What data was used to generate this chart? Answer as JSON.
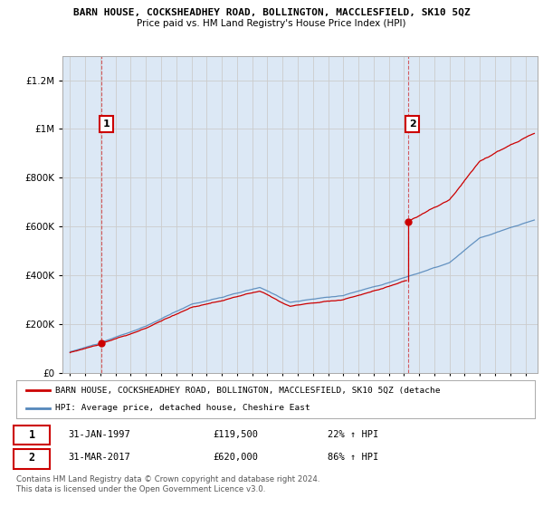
{
  "title": "BARN HOUSE, COCKSHEADHEY ROAD, BOLLINGTON, MACCLESFIELD, SK10 5QZ",
  "subtitle": "Price paid vs. HM Land Registry's House Price Index (HPI)",
  "legend_line1": "BARN HOUSE, COCKSHEADHEY ROAD, BOLLINGTON, MACCLESFIELD, SK10 5QZ (detache",
  "legend_line2": "HPI: Average price, detached house, Cheshire East",
  "footer": "Contains HM Land Registry data © Crown copyright and database right 2024.\nThis data is licensed under the Open Government Licence v3.0.",
  "sale1_date": "31-JAN-1997",
  "sale1_price": "£119,500",
  "sale1_hpi": "22% ↑ HPI",
  "sale2_date": "31-MAR-2017",
  "sale2_price": "£620,000",
  "sale2_hpi": "86% ↑ HPI",
  "sale1_x": 1997.08,
  "sale1_y": 119500,
  "sale2_x": 2017.25,
  "sale2_y": 620000,
  "vline1_x": 1997.08,
  "vline2_x": 2017.25,
  "ylim": [
    0,
    1300000
  ],
  "xlim": [
    1994.5,
    2025.8
  ],
  "red_color": "#cc0000",
  "blue_color": "#5588bb",
  "grid_color": "#cccccc",
  "bg_color": "#ffffff",
  "plot_bg_color": "#dce8f5"
}
